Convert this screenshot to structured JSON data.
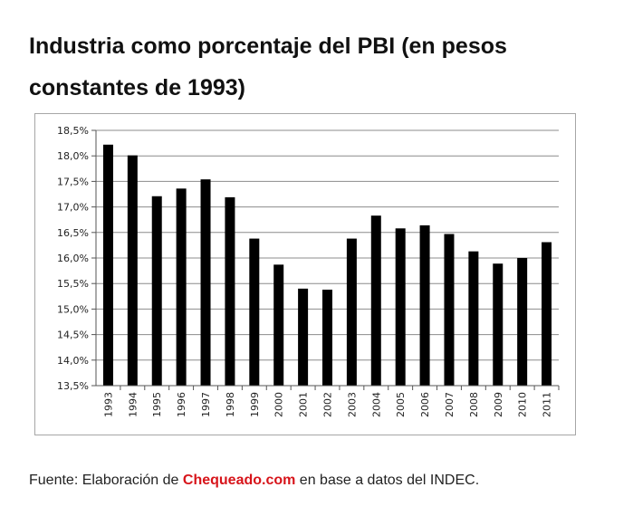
{
  "title": "Industria como porcentaje del PBI (en pesos constantes de 1993)",
  "source": {
    "prefix": "Fuente: Elaboración de ",
    "brand": "Chequeado.com",
    "suffix": " en base a datos del INDEC."
  },
  "colors": {
    "bar": "#000000",
    "grid": "#8c8c8c",
    "brand": "#d7141a"
  },
  "chart_data": {
    "type": "bar",
    "categories": [
      "1993",
      "1994",
      "1995",
      "1996",
      "1997",
      "1998",
      "1999",
      "2000",
      "2001",
      "2002",
      "2003",
      "2004",
      "2005",
      "2006",
      "2007",
      "2008",
      "2009",
      "2010",
      "2011"
    ],
    "values": [
      18.22,
      18.01,
      17.21,
      17.36,
      17.54,
      17.19,
      16.38,
      15.87,
      15.4,
      15.38,
      16.38,
      16.83,
      16.58,
      16.64,
      16.47,
      16.13,
      15.89,
      16.0,
      16.31
    ],
    "ylim": [
      13.5,
      18.5
    ],
    "yticks": [
      13.5,
      14.0,
      14.5,
      15.0,
      15.5,
      16.0,
      16.5,
      17.0,
      17.5,
      18.0,
      18.5
    ],
    "ytick_labels": [
      "13,5%",
      "14,0%",
      "14,5%",
      "15,0%",
      "15,5%",
      "16,0%",
      "16,5%",
      "17,0%",
      "17,5%",
      "18,0%",
      "18,5%"
    ],
    "grid": true,
    "legend": "none",
    "xlabel": "",
    "ylabel": ""
  }
}
